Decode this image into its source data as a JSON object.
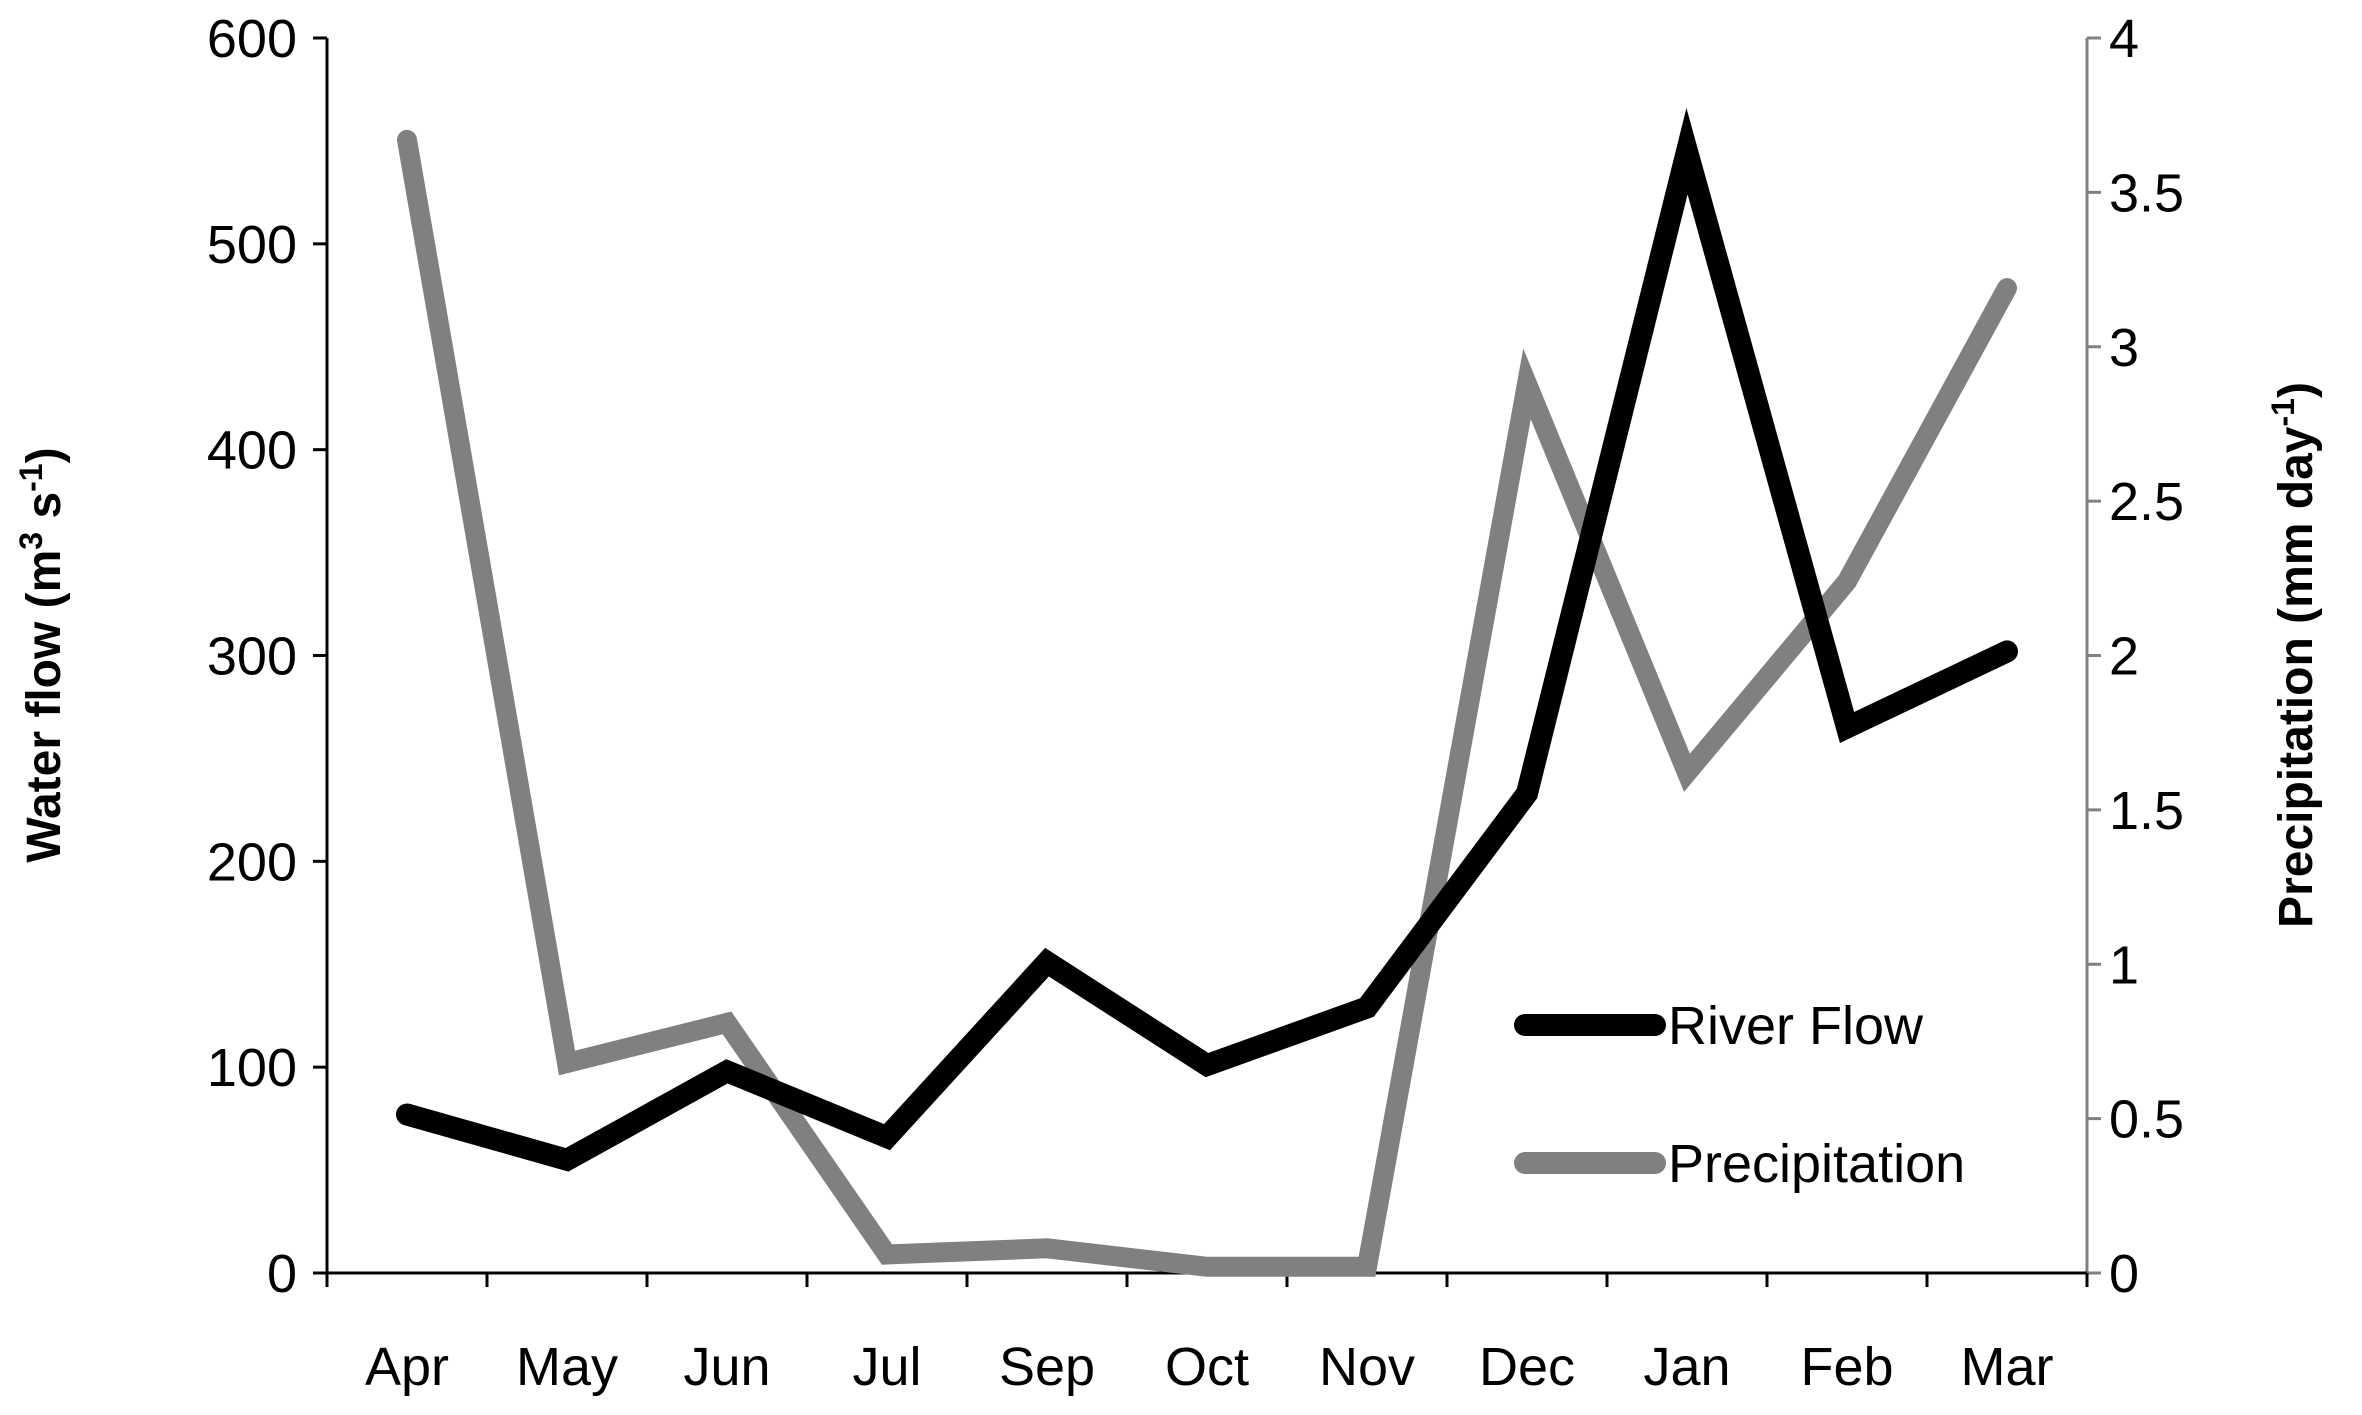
{
  "chart_data": {
    "type": "line",
    "categories": [
      "Apr",
      "May",
      "Jun",
      "Jul",
      "Sep",
      "Oct",
      "Nov",
      "Dec",
      "Jan",
      "Feb",
      "Mar"
    ],
    "y_left": {
      "label_main": "Water flow (m",
      "label_sup1": "3",
      "label_mid": " s",
      "label_sup2": "-1",
      "label_end": ")",
      "range": [
        0,
        600
      ],
      "ticks": [
        "0",
        "100",
        "200",
        "300",
        "400",
        "500",
        "600"
      ]
    },
    "y_right": {
      "label_main": "Precipitation (mm day",
      "label_sup": "-1",
      "label_end": ")",
      "range": [
        0,
        4
      ],
      "ticks": [
        "0",
        "0.5",
        "1",
        "1.5",
        "2",
        "2.5",
        "3",
        "3.5",
        "4"
      ]
    },
    "series": [
      {
        "name": "River Flow",
        "axis": "left",
        "color": "#000000",
        "values": [
          77,
          55,
          98,
          66,
          151,
          101,
          129,
          233,
          545,
          265,
          302
        ]
      },
      {
        "name": "Precipitation",
        "axis": "right",
        "color": "#808080",
        "values": [
          3.67,
          0.68,
          0.81,
          0.06,
          0.08,
          0.02,
          0.02,
          2.88,
          1.62,
          2.24,
          3.19
        ]
      }
    ],
    "grid": false,
    "legend_position": "bottom-right"
  }
}
